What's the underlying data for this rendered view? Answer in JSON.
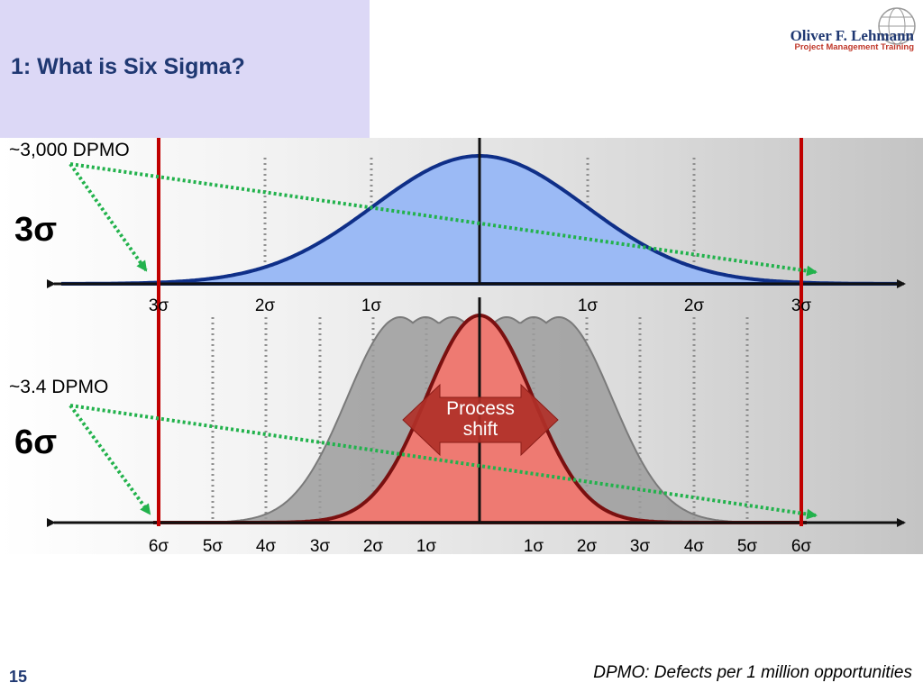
{
  "slide": {
    "title": "1: What is Six Sigma?",
    "number": "15",
    "footnote": "DPMO: Defects per 1 million opportunities"
  },
  "logo": {
    "name": "Oliver F. Lehmann",
    "subtitle": "Project Management Training"
  },
  "top_panel": {
    "sigma_label": "3σ",
    "dpmo_label": "~3,000 DPMO",
    "axis_ticks": [
      "3σ",
      "2σ",
      "1σ",
      "1σ",
      "2σ",
      "3σ"
    ]
  },
  "bottom_panel": {
    "sigma_label": "6σ",
    "dpmo_label": "~3.4 DPMO",
    "shift_label_line1": "Process",
    "shift_label_line2": "shift",
    "axis_ticks": [
      "6σ",
      "5σ",
      "4σ",
      "3σ",
      "2σ",
      "1σ",
      "1σ",
      "2σ",
      "3σ",
      "4σ",
      "5σ",
      "6σ"
    ]
  },
  "colors": {
    "title_bg": "#dcd8f6",
    "title_text": "#1f3872",
    "blue_curve_fill": "#9bbaf5",
    "blue_curve_stroke": "#0f2f88",
    "red_curve_fill": "#ee7a72",
    "red_curve_stroke": "#7a1010",
    "limit_line": "#c00000",
    "dotted_arrow": "#22b24c",
    "shift_arrow": "#c0392b"
  }
}
